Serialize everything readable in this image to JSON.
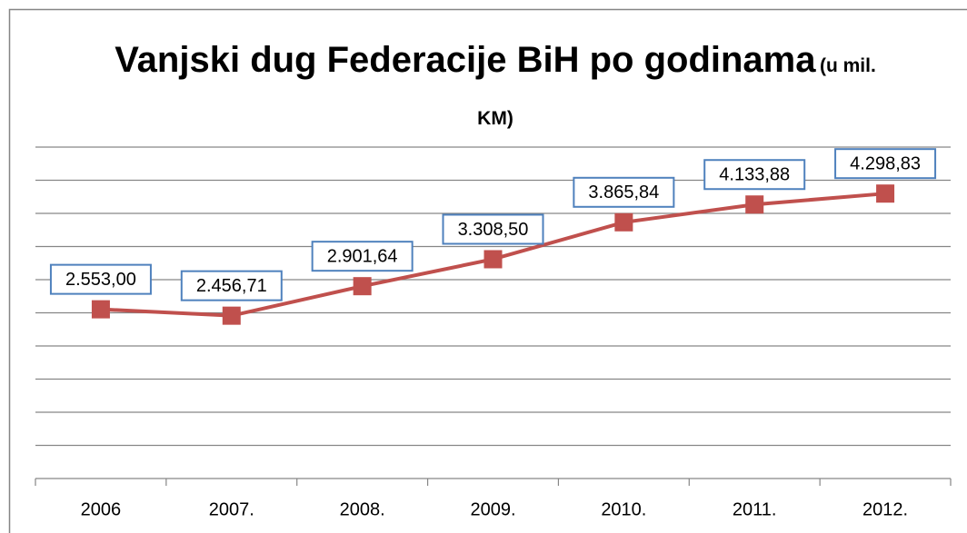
{
  "chart_data": {
    "type": "line",
    "title": "Vanjski dug Federacije BiH po godinama",
    "unit": "(u mil. KM)",
    "categories": [
      "2006",
      "2007.",
      "2008.",
      "2009.",
      "2010.",
      "2011.",
      "2012."
    ],
    "series": [
      {
        "color": "#c0504d",
        "values": [
          2553.0,
          2456.71,
          2901.64,
          3308.5,
          3865.84,
          4133.88,
          4298.83
        ],
        "value_labels": [
          "2.553,00",
          "2.456,71",
          "2.901,64",
          "3.308,50",
          "3.865,84",
          "4.133,88",
          "4.298,83"
        ]
      }
    ],
    "ylim": [
      0,
      5000
    ],
    "yticks": [
      0,
      500,
      1000,
      1500,
      2000,
      2500,
      3000,
      3500,
      4000,
      4500,
      5000
    ],
    "grid": true,
    "label_border_color": "#4f81bd"
  }
}
